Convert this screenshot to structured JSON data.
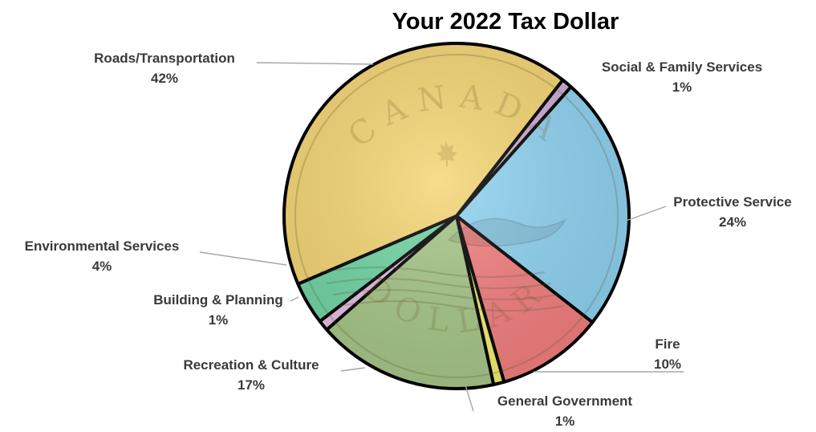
{
  "chart_data": {
    "type": "pie",
    "title": "Your 2022 Tax Dollar",
    "slices": [
      {
        "label": "Social & Family Services",
        "value": 1,
        "display": "1%",
        "color": "#c7a0d0"
      },
      {
        "label": "Protective Service",
        "value": 24,
        "display": "24%",
        "color": "#7fcdf0"
      },
      {
        "label": "Fire",
        "value": 10,
        "display": "10%",
        "color": "#f26d6d"
      },
      {
        "label": "General Government",
        "value": 1,
        "display": "1%",
        "color": "#f3ef58"
      },
      {
        "label": "Recreation & Culture",
        "value": 17,
        "display": "17%",
        "color": "#9bbf78"
      },
      {
        "label": "Building & Planning",
        "value": 1,
        "display": "1%",
        "color": "#e3b6e1"
      },
      {
        "label": "Environmental Services",
        "value": 4,
        "display": "4%",
        "color": "#5ccf98"
      },
      {
        "label": "Roads/Transportation",
        "value": 42,
        "display": "42%",
        "color": "#f4cf60"
      }
    ],
    "background": "Canadian one-dollar coin (loonie) image",
    "coin_text": [
      "CANADA",
      "DOLLAR"
    ]
  }
}
